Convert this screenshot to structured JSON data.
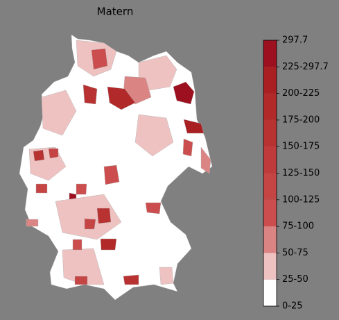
{
  "title": "Matern",
  "colorbar": {
    "labels": [
      "0-25",
      "25-50",
      "50-75",
      "75-100",
      "100-125",
      "125-150",
      "150-175",
      "175-200",
      "200-225",
      "225-297.7",
      "297.7"
    ],
    "colors": [
      "#ffffff",
      "#efc2c2",
      "#db8484",
      "#cb4d4d",
      "#c54444",
      "#bf3b3b",
      "#b83232",
      "#b12929",
      "#a91f22",
      "#9c1020"
    ]
  }
}
